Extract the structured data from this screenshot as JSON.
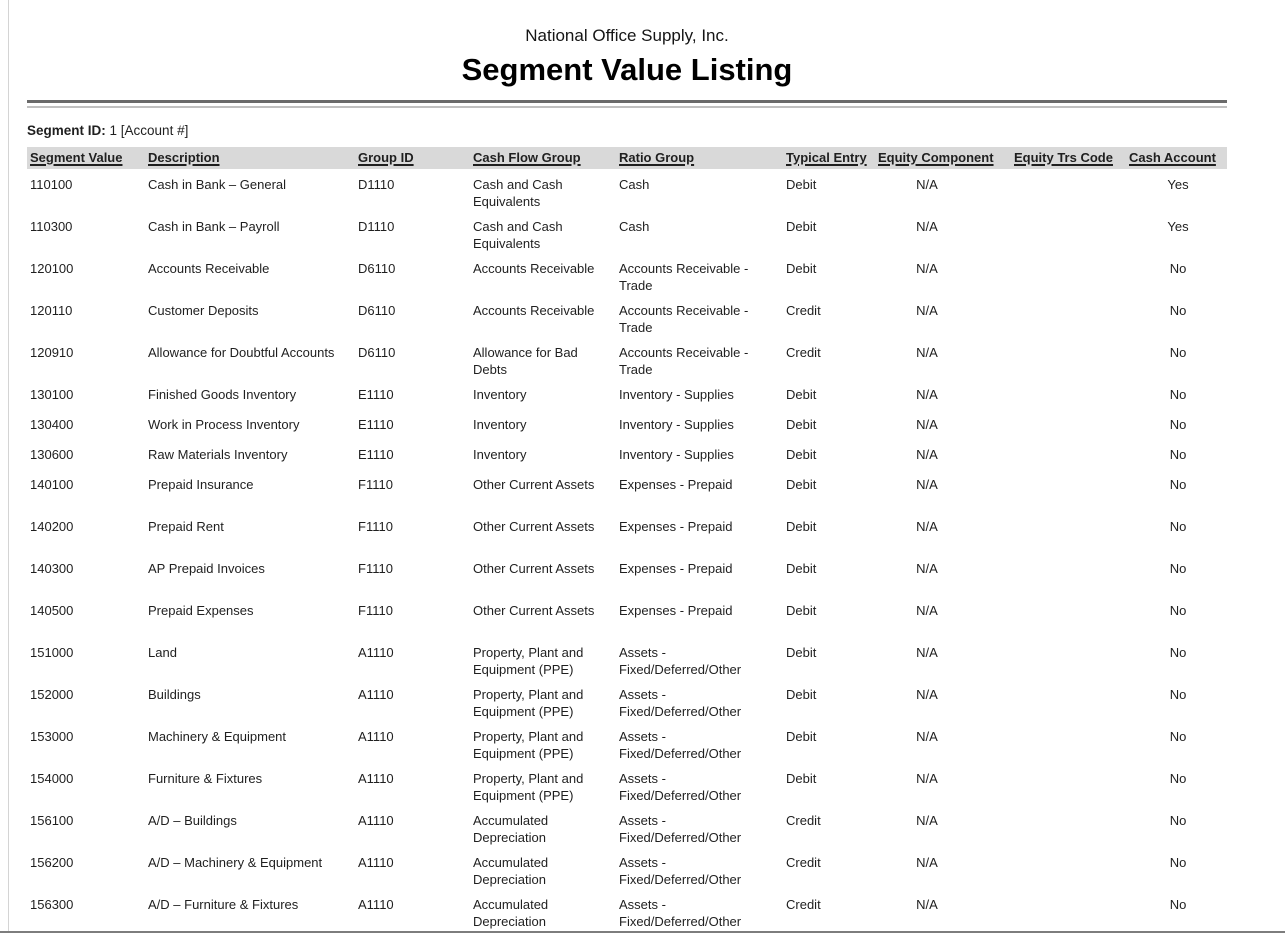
{
  "header": {
    "company": "National Office Supply, Inc.",
    "title": "Segment Value Listing",
    "segment_id_label": "Segment ID:",
    "segment_id_value": "1 [Account #]"
  },
  "table": {
    "columns": [
      "Segment Value",
      "Description",
      "Group ID",
      "Cash Flow Group",
      "Ratio Group",
      "Typical Entry",
      "Equity Component",
      "Equity Trs Code",
      "Cash Account"
    ],
    "rows": [
      [
        "110100",
        "Cash in Bank – General",
        "D1110",
        "Cash and Cash\nEquivalents",
        "Cash",
        "Debit",
        "N/A",
        "",
        "Yes"
      ],
      [
        "110300",
        "Cash in Bank – Payroll",
        "D1110",
        "Cash and Cash\nEquivalents",
        "Cash",
        "Debit",
        "N/A",
        "",
        "Yes"
      ],
      [
        "120100",
        "Accounts Receivable",
        "D6110",
        "Accounts Receivable",
        "Accounts Receivable -\nTrade",
        "Debit",
        "N/A",
        "",
        "No"
      ],
      [
        "120110",
        "Customer Deposits",
        "D6110",
        "Accounts Receivable",
        "Accounts Receivable -\nTrade",
        "Credit",
        "N/A",
        "",
        "No"
      ],
      [
        "120910",
        "Allowance for Doubtful Accounts",
        "D6110",
        "Allowance for Bad\nDebts",
        "Accounts Receivable -\nTrade",
        "Credit",
        "N/A",
        "",
        "No"
      ],
      [
        "130100",
        "Finished Goods Inventory",
        "E1110",
        "Inventory",
        "Inventory - Supplies",
        "Debit",
        "N/A",
        "",
        "No"
      ],
      [
        "130400",
        "Work in Process Inventory",
        "E1110",
        "Inventory",
        "Inventory - Supplies",
        "Debit",
        "N/A",
        "",
        "No"
      ],
      [
        "130600",
        "Raw Materials Inventory",
        "E1110",
        "Inventory",
        "Inventory - Supplies",
        "Debit",
        "N/A",
        "",
        "No"
      ],
      [
        "140100",
        "Prepaid Insurance",
        "F1110",
        "Other Current Assets",
        "Expenses - Prepaid",
        "Debit",
        "N/A",
        "",
        "No"
      ],
      [
        "140200",
        "Prepaid Rent",
        "F1110",
        "Other Current Assets",
        "Expenses - Prepaid",
        "Debit",
        "N/A",
        "",
        "No"
      ],
      [
        "140300",
        "AP Prepaid Invoices",
        "F1110",
        "Other Current Assets",
        "Expenses - Prepaid",
        "Debit",
        "N/A",
        "",
        "No"
      ],
      [
        "140500",
        "Prepaid Expenses",
        "F1110",
        "Other Current Assets",
        "Expenses - Prepaid",
        "Debit",
        "N/A",
        "",
        "No"
      ],
      [
        "151000",
        "Land",
        "A1110",
        "Property, Plant and\nEquipment (PPE)",
        "Assets -\nFixed/Deferred/Other",
        "Debit",
        "N/A",
        "",
        "No"
      ],
      [
        "152000",
        "Buildings",
        "A1110",
        "Property, Plant and\nEquipment (PPE)",
        "Assets -\nFixed/Deferred/Other",
        "Debit",
        "N/A",
        "",
        "No"
      ],
      [
        "153000",
        "Machinery & Equipment",
        "A1110",
        "Property, Plant and\nEquipment (PPE)",
        "Assets -\nFixed/Deferred/Other",
        "Debit",
        "N/A",
        "",
        "No"
      ],
      [
        "154000",
        "Furniture & Fixtures",
        "A1110",
        "Property, Plant and\nEquipment (PPE)",
        "Assets -\nFixed/Deferred/Other",
        "Debit",
        "N/A",
        "",
        "No"
      ],
      [
        "156100",
        "A/D – Buildings",
        "A1110",
        "Accumulated\nDepreciation",
        "Assets -\nFixed/Deferred/Other",
        "Credit",
        "N/A",
        "",
        "No"
      ],
      [
        "156200",
        "A/D – Machinery & Equipment",
        "A1110",
        "Accumulated\nDepreciation",
        "Assets -\nFixed/Deferred/Other",
        "Credit",
        "N/A",
        "",
        "No"
      ],
      [
        "156300",
        "A/D – Furniture & Fixtures",
        "A1110",
        "Accumulated\nDepreciation",
        "Assets -\nFixed/Deferred/Other",
        "Credit",
        "N/A",
        "",
        "No"
      ]
    ]
  },
  "colors": {
    "header_band": "#d9d9d9",
    "rule_dark": "#6a6a6a",
    "rule_light": "#c0c0c0",
    "page_border": "#7d7d7d",
    "text": "#1f1f1f"
  }
}
